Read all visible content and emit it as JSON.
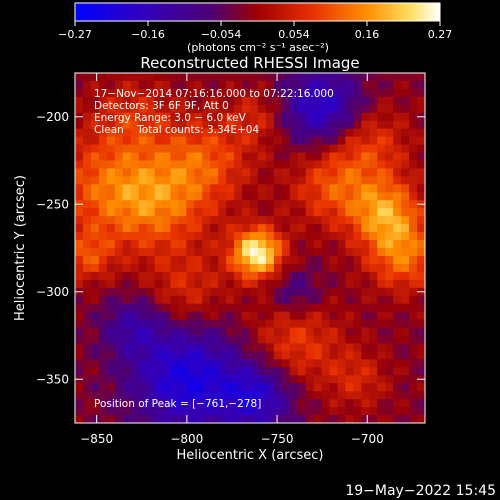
{
  "chart_data": {
    "type": "heatmap",
    "title": "Reconstructed RHESSI Image",
    "xlabel": "Heliocentric X (arcsec)",
    "ylabel": "Heliocentric Y (arcsec)",
    "xlim": [
      -862,
      -668
    ],
    "ylim": [
      -375,
      -175
    ],
    "xticks": [
      -850,
      -800,
      -750,
      -700
    ],
    "yticks": [
      -200,
      -250,
      -300,
      -350
    ],
    "xtick_labels": [
      "−850",
      "−800",
      "−750",
      "−700"
    ],
    "ytick_labels": [
      "−200",
      "−250",
      "−300",
      "−350"
    ],
    "colorbar": {
      "range": [
        -0.27,
        0.27
      ],
      "tick_labels": [
        "−0.27",
        "−0.16",
        "−0.054",
        "0.054",
        "0.16",
        "0.27"
      ],
      "unit_text": "(photons cm⁻² s⁻¹ asec⁻²)"
    },
    "annotations": [
      "17−Nov−2014 07:16:16.000 to 07:22:16.000",
      "Detectors: 3F 6F 9F, Att 0",
      "Energy Range: 3.0 − 6.0 keV",
      "Clean    Total counts: 3.34E+04"
    ],
    "peak_label": "Position of Peak = [−761,−278]",
    "peak": {
      "x": -761,
      "y": -278,
      "value": 0.27
    },
    "sources": [
      {
        "x": -761,
        "y": -278,
        "sigma": 10,
        "amp": 0.27
      },
      {
        "x": -845,
        "y": -240,
        "sigma": 22,
        "amp": 0.12
      },
      {
        "x": -815,
        "y": -250,
        "sigma": 20,
        "amp": 0.12
      },
      {
        "x": -790,
        "y": -225,
        "sigma": 18,
        "amp": 0.11
      },
      {
        "x": -720,
        "y": -240,
        "sigma": 16,
        "amp": 0.11
      },
      {
        "x": -690,
        "y": -255,
        "sigma": 14,
        "amp": 0.17
      },
      {
        "x": -680,
        "y": -280,
        "sigma": 14,
        "amp": 0.14
      },
      {
        "x": -700,
        "y": -215,
        "sigma": 16,
        "amp": 0.1
      },
      {
        "x": -740,
        "y": -330,
        "sigma": 18,
        "amp": 0.1
      },
      {
        "x": -800,
        "y": -300,
        "sigma": 16,
        "amp": 0.08
      },
      {
        "x": -830,
        "y": -200,
        "sigma": 16,
        "amp": 0.07
      },
      {
        "x": -760,
        "y": -200,
        "sigma": 12,
        "amp": 0.07
      },
      {
        "x": -705,
        "y": -350,
        "sigma": 12,
        "amp": 0.07
      },
      {
        "x": -855,
        "y": -280,
        "sigma": 10,
        "amp": 0.1
      }
    ],
    "sinks": [
      {
        "x": -800,
        "y": -350,
        "sigma": 22,
        "amp": 0.2
      },
      {
        "x": -725,
        "y": -195,
        "sigma": 16,
        "amp": 0.18
      },
      {
        "x": -760,
        "y": -360,
        "sigma": 14,
        "amp": 0.16
      },
      {
        "x": -740,
        "y": -300,
        "sigma": 10,
        "amp": 0.08
      },
      {
        "x": -830,
        "y": -320,
        "sigma": 12,
        "amp": 0.1
      }
    ]
  },
  "footer": {
    "timestamp": "19−May−2022 15:45"
  }
}
